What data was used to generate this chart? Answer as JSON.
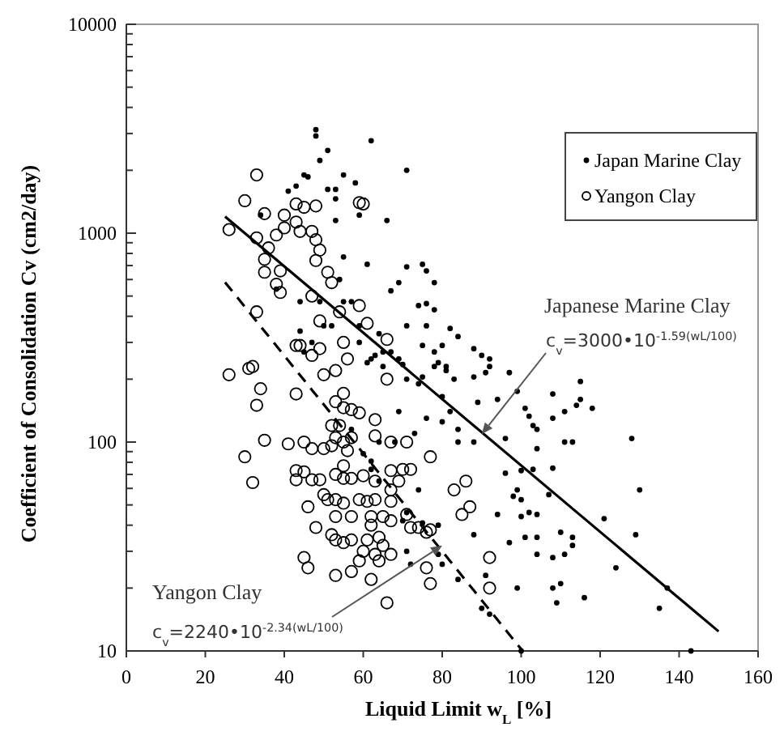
{
  "chart_data": {
    "type": "scatter",
    "xlabel": "Liquid Limit  w$_{L}$ [%]",
    "ylabel": "Coefficient of Consolidation Cv (cm2/day)",
    "xlim": [
      0,
      160
    ],
    "xticks": [
      0,
      20,
      40,
      60,
      80,
      100,
      120,
      140,
      160
    ],
    "ylim": [
      10,
      10000
    ],
    "yticks": [
      10,
      {
        "value": 20,
        "label": null
      },
      {
        "value": 30,
        "label": null
      },
      {
        "value": 40,
        "label": null
      },
      {
        "value": 50,
        "label": null
      },
      {
        "value": 60,
        "label": null
      },
      {
        "value": 70,
        "label": null
      },
      {
        "value": 80,
        "label": null
      },
      {
        "value": 90,
        "label": null
      },
      100,
      {
        "value": 200,
        "label": null
      },
      {
        "value": 300,
        "label": null
      },
      {
        "value": 400,
        "label": null
      },
      {
        "value": 500,
        "label": null
      },
      {
        "value": 600,
        "label": null
      },
      {
        "value": 700,
        "label": null
      },
      {
        "value": 800,
        "label": null
      },
      {
        "value": 900,
        "label": null
      },
      1000,
      {
        "value": 2000,
        "label": null
      },
      {
        "value": 3000,
        "label": null
      },
      {
        "value": 4000,
        "label": null
      },
      {
        "value": 5000,
        "label": null
      },
      {
        "value": 6000,
        "label": null
      },
      {
        "value": 7000,
        "label": null
      },
      {
        "value": 8000,
        "label": null
      },
      {
        "value": 9000,
        "label": null
      },
      10000
    ],
    "log": "y",
    "grid": false,
    "legend": "top right",
    "series": [
      {
        "name": "Japan Marine Clay",
        "color": "#000000",
        "marker": "circle",
        "x": [
          48,
          48,
          51,
          62,
          49,
          71,
          45,
          46,
          55,
          58,
          41,
          43,
          51,
          53,
          53,
          34,
          59,
          53,
          66,
          55,
          61,
          71,
          75,
          76,
          78,
          54,
          38,
          44,
          49,
          55,
          57,
          67,
          69,
          74,
          78,
          76,
          71,
          82,
          50,
          52,
          59,
          64,
          44,
          47,
          45,
          59,
          65,
          67,
          62,
          63,
          69,
          75,
          78,
          80,
          65,
          78,
          84,
          88,
          81,
          92,
          76,
          90,
          61,
          70,
          71,
          75,
          74,
          80,
          69,
          76,
          73,
          57,
          64,
          60,
          62,
          62,
          64,
          74,
          71,
          75,
          79,
          71,
          72,
          79,
          80,
          68,
          70,
          79,
          81,
          83,
          88,
          91,
          92,
          97,
          99,
          94,
          89,
          82,
          80,
          84,
          88,
          84,
          101,
          102,
          103,
          104,
          108,
          108,
          111,
          115,
          115,
          118,
          114,
          111,
          113,
          104,
          96,
          128,
          96,
          100,
          103,
          108,
          107,
          99,
          100,
          98,
          102,
          104,
          100,
          94,
          130,
          121,
          110,
          113,
          113,
          101,
          104,
          129,
          88,
          104,
          108,
          111,
          124,
          137,
          135,
          108,
          110,
          109,
          116,
          99,
          97,
          91,
          84,
          90,
          92,
          143,
          100
        ],
        "values": [
          3130,
          2920,
          2490,
          2770,
          2230,
          2000,
          1900,
          1860,
          1900,
          1740,
          1590,
          1680,
          1620,
          1620,
          1460,
          1220,
          1220,
          1150,
          1150,
          770,
          710,
          690,
          710,
          660,
          580,
          600,
          540,
          470,
          470,
          470,
          470,
          530,
          580,
          450,
          430,
          360,
          360,
          350,
          360,
          360,
          360,
          330,
          340,
          300,
          270,
          300,
          270,
          270,
          250,
          260,
          250,
          290,
          270,
          290,
          230,
          230,
          320,
          280,
          230,
          230,
          460,
          260,
          240,
          235,
          200,
          205,
          190,
          165,
          140,
          130,
          110,
          115,
          100,
          88,
          81,
          74,
          65,
          59,
          46,
          41,
          40,
          30,
          26,
          29,
          26,
          100,
          42,
          240,
          220,
          200,
          205,
          215,
          250,
          215,
          175,
          160,
          155,
          140,
          125,
          100,
          100,
          115,
          145,
          133,
          120,
          115,
          170,
          130,
          140,
          160,
          195,
          145,
          150,
          100,
          100,
          93,
          104,
          104,
          71,
          73,
          74,
          75,
          56,
          59,
          53,
          55,
          46,
          45,
          44,
          45,
          59,
          43,
          37,
          35,
          32,
          35,
          35,
          36,
          36,
          29,
          28,
          29,
          25,
          20,
          16,
          20,
          21,
          17,
          18,
          20,
          33,
          23,
          22,
          16,
          15,
          10,
          10
        ]
      },
      {
        "name": "Yangon Clay",
        "color": "#000000",
        "marker": "circle",
        "x": [
          33,
          30,
          26,
          35,
          33,
          36,
          38,
          40,
          40,
          43,
          45,
          48,
          43,
          44,
          47,
          48,
          49,
          48,
          59,
          60,
          35,
          35,
          39,
          38,
          39,
          51,
          52,
          47,
          33,
          49,
          54,
          59,
          61,
          43,
          44,
          47,
          49,
          55,
          56,
          66,
          32,
          26,
          31,
          34,
          33,
          43,
          53,
          50,
          53,
          55,
          57,
          59,
          55,
          52,
          54,
          53,
          57,
          63,
          66,
          63,
          67,
          71,
          35,
          41,
          45,
          47,
          50,
          52,
          55,
          56,
          30,
          32,
          43,
          45,
          43,
          47,
          49,
          53,
          55,
          55,
          57,
          60,
          63,
          67,
          69,
          67,
          70,
          72,
          50,
          46,
          51,
          53,
          55,
          53,
          57,
          59,
          61,
          63,
          67,
          62,
          65,
          62,
          67,
          48,
          53,
          55,
          57,
          52,
          61,
          64,
          65,
          63,
          60,
          64,
          67,
          71,
          72,
          74,
          76,
          45,
          46,
          53,
          57,
          59,
          62,
          66,
          76,
          77,
          77,
          83,
          86,
          85,
          87,
          77,
          92,
          92
        ],
        "values": [
          1900,
          1430,
          1040,
          1240,
          950,
          850,
          980,
          1220,
          1060,
          1380,
          1330,
          1350,
          1130,
          1020,
          1020,
          930,
          830,
          740,
          1400,
          1380,
          750,
          650,
          660,
          570,
          520,
          650,
          580,
          500,
          420,
          380,
          420,
          450,
          370,
          290,
          290,
          260,
          280,
          300,
          250,
          310,
          230,
          210,
          225,
          180,
          150,
          170,
          220,
          210,
          156,
          146,
          143,
          138,
          171,
          120,
          120,
          105,
          105,
          128,
          200,
          107,
          100,
          100,
          102,
          98,
          100,
          93,
          93,
          96,
          100,
          91,
          85,
          64,
          73,
          72,
          66,
          66,
          66,
          70,
          77,
          67,
          67,
          69,
          65,
          73,
          65,
          59,
          74,
          74,
          56,
          49,
          53,
          53,
          51,
          44,
          44,
          53,
          52,
          53,
          52,
          44,
          44,
          40,
          42,
          39,
          34,
          33,
          34,
          36,
          34,
          35,
          32,
          29,
          30,
          27,
          29,
          45,
          39,
          39,
          37,
          28,
          25,
          23,
          24,
          27,
          22,
          17,
          25,
          21,
          85,
          59,
          65,
          45,
          49,
          38,
          28,
          20
        ]
      },
      {
        "type": "line",
        "color": "#000000",
        "line_style": "solid",
        "x": [
          25,
          150
        ],
        "values": [
          1201,
          12.4
        ]
      },
      {
        "type": "line",
        "color": "#000000",
        "line_style": "dashed",
        "x": [
          25,
          100
        ],
        "values": [
          582,
          10.2
        ]
      }
    ],
    "annotations": [
      "Japanese Marine Clay",
      {
        "text": "c$_{v}$=3000•10$^{-1.59(wL/100)}$",
        "x": 90,
        "y": 109
      },
      "Yangon Clay",
      {
        "text": "c$_{v}$=2240•10$^{-2.34(wL/100)}$",
        "x": 80,
        "y": 32
      }
    ]
  }
}
